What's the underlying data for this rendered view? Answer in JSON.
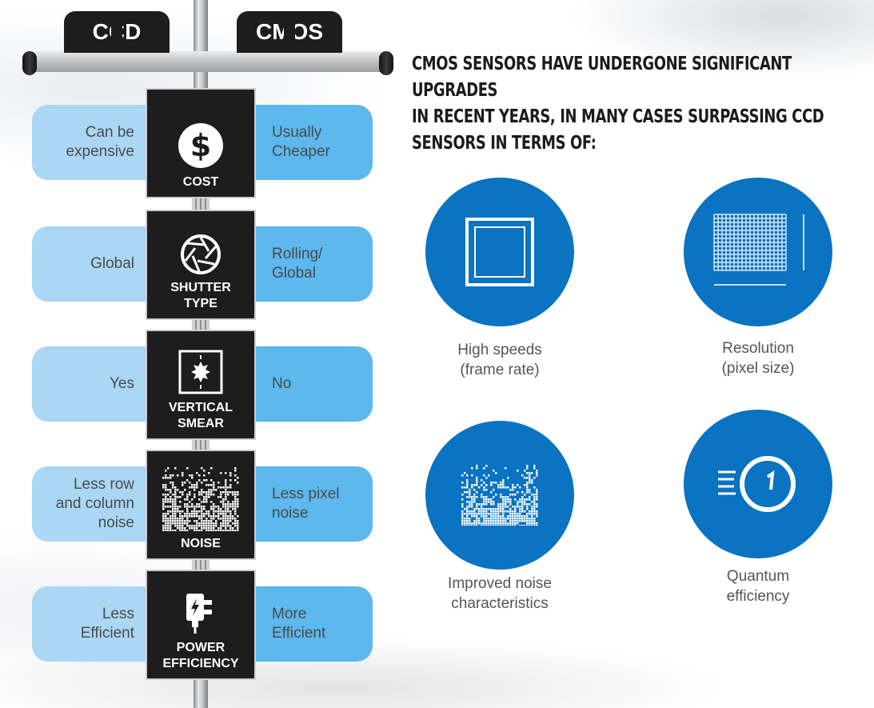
{
  "header": {
    "left_sign": "CCD",
    "right_sign": "CMOS"
  },
  "rows": [
    {
      "category": "COST",
      "ccd": "Can be\nexpensive",
      "cmos": "Usually\nCheaper",
      "icon": "dollar-icon"
    },
    {
      "category_line1": "SHUTTER",
      "category_line2": "TYPE",
      "ccd": "Global",
      "cmos": "Rolling/\nGlobal",
      "icon": "aperture-icon"
    },
    {
      "category_line1": "VERTICAL",
      "category_line2": "SMEAR",
      "ccd": "Yes",
      "cmos": "No",
      "icon": "smear-icon"
    },
    {
      "category": "NOISE",
      "ccd": "Less row\nand column\nnoise",
      "cmos": "Less pixel\nnoise",
      "icon": "noise-icon"
    },
    {
      "category_line1": "POWER",
      "category_line2": "EFFICIENCY",
      "ccd": "Less\nEfficient",
      "cmos": "More\nEfficient",
      "icon": "power-adapter-icon"
    }
  ],
  "heading": {
    "line1": "CMOS SENSORS HAVE UNDERGONE SIGNIFICANT UPGRADES",
    "line2": "IN RECENT YEARS, IN MANY CASES SURPASSING CCD",
    "line3": "SENSORS IN TERMS OF:"
  },
  "features": [
    {
      "caption": "High speeds\n(frame rate)",
      "icon": "frame-icon"
    },
    {
      "caption": "Resolution\n(pixel size)",
      "icon": "pixel-grid-icon"
    },
    {
      "caption": "Improved noise\ncharacteristics",
      "icon": "noise-icon"
    },
    {
      "caption": "Quantum\nefficiency",
      "icon": "gauge-icon"
    }
  ],
  "colors": {
    "dark_sign": "#1d1d1d",
    "ccd_pill": "#a9d7f4",
    "cmos_pill": "#5cb8ee",
    "feature_circle": "#0a73c2"
  }
}
